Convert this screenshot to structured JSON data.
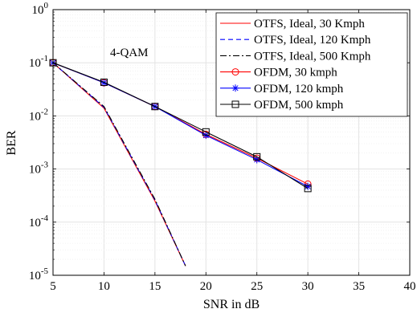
{
  "chart_data": {
    "type": "line",
    "annotation": "4-QAM",
    "xlabel": "SNR in dB",
    "ylabel": "BER",
    "xlim": [
      5,
      40
    ],
    "ylim": [
      1e-05,
      1
    ],
    "yscale": "log",
    "grid": true,
    "legend_position": "top-right",
    "x_ticks": [
      5,
      10,
      15,
      20,
      25,
      30,
      35,
      40
    ],
    "y_ticks": [
      {
        "value": 1e-05,
        "base": "10",
        "exp": "-5"
      },
      {
        "value": 0.0001,
        "base": "10",
        "exp": "-4"
      },
      {
        "value": 0.001,
        "base": "10",
        "exp": "-3"
      },
      {
        "value": 0.01,
        "base": "10",
        "exp": "-2"
      },
      {
        "value": 0.1,
        "base": "10",
        "exp": "-1"
      },
      {
        "value": 1,
        "base": "10",
        "exp": "0"
      }
    ],
    "series": [
      {
        "name": "OTFS, Ideal, 30 Kmph",
        "color": "#ff0000",
        "dash": "solid",
        "marker": "none",
        "x": [
          5,
          10,
          15,
          18
        ],
        "y": [
          0.1,
          0.014,
          0.00025,
          1.5e-05
        ]
      },
      {
        "name": "OTFS, Ideal, 120 Kmph",
        "color": "#0000ff",
        "dash": "dashed",
        "marker": "none",
        "x": [
          5,
          10,
          15,
          18
        ],
        "y": [
          0.1,
          0.0145,
          0.00026,
          1.5e-05
        ]
      },
      {
        "name": "OTFS, Ideal, 500 Kmph",
        "color": "#000000",
        "dash": "dashdot",
        "marker": "none",
        "x": [
          5,
          10,
          15,
          18
        ],
        "y": [
          0.1,
          0.015,
          0.00027,
          1.5e-05
        ]
      },
      {
        "name": "OFDM, 30 kmph",
        "color": "#ff0000",
        "dash": "solid",
        "marker": "circle",
        "x": [
          5,
          10,
          15,
          20,
          25,
          30
        ],
        "y": [
          0.1,
          0.042,
          0.015,
          0.0045,
          0.0016,
          0.00052
        ]
      },
      {
        "name": "OFDM, 120 kmph",
        "color": "#0000ff",
        "dash": "solid",
        "marker": "asterisk",
        "x": [
          5,
          10,
          15,
          20,
          25,
          30
        ],
        "y": [
          0.1,
          0.042,
          0.015,
          0.0043,
          0.0015,
          0.00047
        ]
      },
      {
        "name": "OFDM, 500 kmph",
        "color": "#000000",
        "dash": "solid",
        "marker": "square",
        "x": [
          5,
          10,
          15,
          20,
          25,
          30
        ],
        "y": [
          0.1,
          0.043,
          0.015,
          0.005,
          0.0017,
          0.00043
        ]
      }
    ]
  }
}
